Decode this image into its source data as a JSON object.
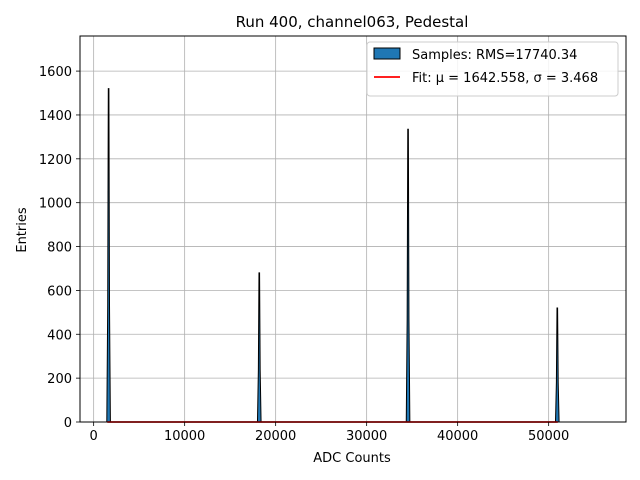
{
  "chart_data": {
    "type": "bar",
    "title": "Run 400, channel063, Pedestal",
    "xlabel": "ADC Counts",
    "ylabel": "Entries",
    "xlim": [
      -1500,
      58500
    ],
    "ylim": [
      0,
      1760
    ],
    "xticks": [
      0,
      10000,
      20000,
      30000,
      40000,
      50000
    ],
    "yticks": [
      0,
      200,
      400,
      600,
      800,
      1000,
      1200,
      1400,
      1600
    ],
    "grid": true,
    "legend_position": "top-right",
    "series": [
      {
        "name": "Samples: RMS=17740.34",
        "kind": "histogram",
        "color": "#1f77b4",
        "edge_color": "#000000",
        "peaks": [
          {
            "center": 1643,
            "height": 1520
          },
          {
            "center": 18200,
            "height": 680
          },
          {
            "center": 34550,
            "height": 1335
          },
          {
            "center": 50950,
            "height": 520
          }
        ]
      },
      {
        "name": "Fit: μ = 1642.558, σ = 3.468",
        "kind": "line",
        "color": "#ff0000",
        "x": [
          1500,
          51000
        ],
        "y": [
          0,
          0
        ]
      }
    ]
  }
}
